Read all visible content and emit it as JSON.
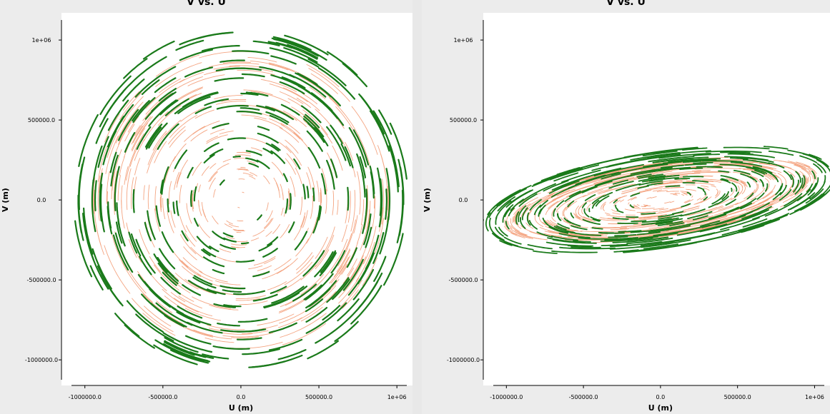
{
  "chart_data": [
    {
      "type": "scatter",
      "title": "V vs. U",
      "xlabel": "U (m)",
      "ylabel": "V (m)",
      "xlim": [
        -1150000,
        1100000
      ],
      "ylim": [
        -1160000,
        1170000
      ],
      "xticks": [
        -1000000,
        -500000,
        0,
        500000,
        1000000
      ],
      "xtick_labels": [
        "-1000000.0",
        "-500000.0",
        "0.0",
        "500000.0",
        "1e+06"
      ],
      "yticks": [
        1000000,
        500000,
        0,
        -500000,
        -1000000
      ],
      "ytick_labels": [
        "1e+06",
        "500000.0",
        "0.0",
        "-500000.0",
        "-1000000.0"
      ],
      "grid": false,
      "series": [
        {
          "color": "#f4a582",
          "track_count": 200,
          "radius_range": [
            30000,
            950000
          ],
          "v_scale": 1.0,
          "tilt_deg": 0,
          "arc_length_deg": [
            8,
            22
          ],
          "stroke_width": 0.9
        },
        {
          "color": "#1a7a1a",
          "track_count": 160,
          "radius_range": [
            120000,
            1080000
          ],
          "v_scale": 1.0,
          "tilt_deg": 0,
          "arc_length_deg": [
            8,
            20
          ],
          "stroke_width": 2.2
        }
      ]
    },
    {
      "type": "scatter",
      "title": "V vs. U",
      "xlabel": "U (m)",
      "ylabel": "V (m)",
      "xlim": [
        -1150000,
        1100000
      ],
      "ylim": [
        -1160000,
        1170000
      ],
      "xticks": [
        -1000000,
        -500000,
        0,
        500000,
        1000000
      ],
      "xtick_labels": [
        "-1000000.0",
        "-500000.0",
        "0.0",
        "500000.0",
        "1e+06"
      ],
      "yticks": [
        1000000,
        500000,
        0,
        -500000,
        -1000000
      ],
      "ytick_labels": [
        "1e+06",
        "500000.0",
        "0.0",
        "-500000.0",
        "-1000000.0"
      ],
      "grid": false,
      "series": [
        {
          "color": "#f4a582",
          "track_count": 220,
          "radius_range": [
            30000,
            1050000
          ],
          "v_scale": 0.22,
          "tilt_deg": 8,
          "arc_length_deg": [
            10,
            28
          ],
          "stroke_width": 0.9
        },
        {
          "color": "#1a7a1a",
          "track_count": 170,
          "radius_range": [
            120000,
            1180000
          ],
          "v_scale": 0.26,
          "tilt_deg": 8,
          "arc_length_deg": [
            8,
            24
          ],
          "stroke_width": 1.8
        }
      ]
    }
  ]
}
